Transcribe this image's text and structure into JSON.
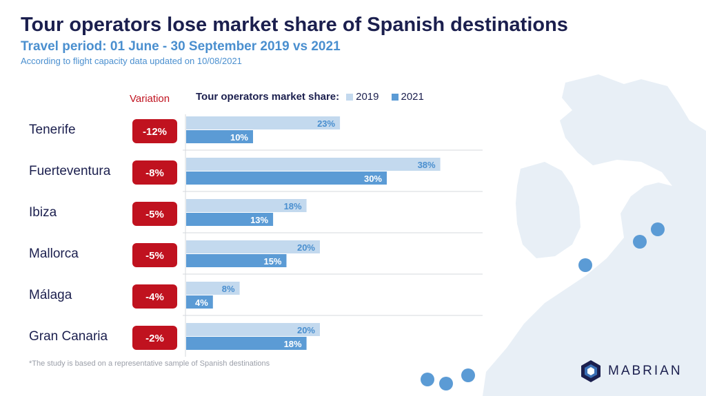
{
  "header": {
    "title": "Tour operators lose market share of Spanish destinations",
    "subtitle": "Travel period: 01 June - 30 September 2019 vs 2021",
    "note": "According  to flight capacity  data  updated on 10/08/2021"
  },
  "variation_header": "Variation",
  "legend": {
    "label": "Tour operators market share:",
    "items": [
      {
        "name": "2019",
        "color": "#c3d9ee"
      },
      {
        "name": "2021",
        "color": "#5b9bd5"
      }
    ]
  },
  "chart_data": {
    "type": "bar",
    "orientation": "horizontal",
    "categories": [
      "Tenerife",
      "Fuerteventura",
      "Ibiza",
      "Mallorca",
      "Málaga",
      "Gran Canaria"
    ],
    "series": [
      {
        "name": "2019",
        "values": [
          23,
          38,
          18,
          20,
          8,
          20
        ],
        "labels": [
          "23%",
          "38%",
          "18%",
          "20%",
          "8%",
          "20%"
        ]
      },
      {
        "name": "2021",
        "values": [
          10,
          30,
          13,
          15,
          4,
          18
        ],
        "labels": [
          "10%",
          "30%",
          "13%",
          "15%",
          "4%",
          "18%"
        ]
      }
    ],
    "variation": [
      "-12%",
      "-8%",
      "-5%",
      "-5%",
      "-4%",
      "-2%"
    ],
    "unit": "%",
    "grid": false,
    "legend_position": "top"
  },
  "colors": {
    "title": "#1b1f4e",
    "accent": "#4a8fcf",
    "variation_badge": "#c0121f",
    "bar_2019": "#c3d9ee",
    "bar_2021": "#5b9bd5",
    "label_2019": "#4a8fcf",
    "label_2021": "#ffffff",
    "map_land": "#e8eff6",
    "map_marker": "#5b9bd5"
  },
  "footnote": "*The study is based on a representative sample of Spanish destinations",
  "logo": {
    "icon": "mabrian-hexagon-icon",
    "text": "MABRIAN"
  }
}
